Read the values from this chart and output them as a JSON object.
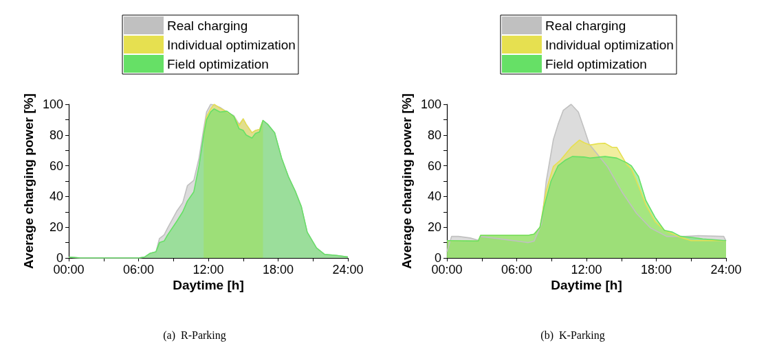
{
  "chart_data": [
    {
      "type": "area",
      "xlabel": "Daytime [h]",
      "ylabel": "Average charging power [%]",
      "annotations": [
        "(a)  R-Parking"
      ],
      "xlim": [
        0,
        24
      ],
      "xticks": [
        {
          "value": 0,
          "label": "00:00"
        },
        {
          "value": 3,
          "label": null
        },
        {
          "value": 6,
          "label": "06:00"
        },
        {
          "value": 9,
          "label": null
        },
        {
          "value": 12,
          "label": "12:00"
        },
        {
          "value": 15,
          "label": null
        },
        {
          "value": 18,
          "label": "18:00"
        },
        {
          "value": 21,
          "label": null
        },
        {
          "value": 24,
          "label": "24:00"
        }
      ],
      "ylim": [
        0,
        100
      ],
      "yticks": [
        0,
        {
          "value": 10,
          "label": null
        },
        20,
        {
          "value": 30,
          "label": null
        },
        40,
        {
          "value": 50,
          "label": null
        },
        60,
        {
          "value": 70,
          "label": null
        },
        80,
        {
          "value": 90,
          "label": null
        },
        100
      ],
      "legend": "top",
      "marker": "none",
      "grid": false,
      "series": [
        {
          "name": "Real charging",
          "color": "#c0c0c0",
          "x": [
            0,
            0.5,
            1,
            6,
            6.5,
            7,
            7.5,
            7.8,
            8.2,
            8.5,
            9.3,
            9.8,
            10.2,
            10.75,
            11.2,
            11.6,
            11.85,
            12.2,
            12.5,
            13,
            13.6,
            14.2,
            14.65,
            15,
            15.25,
            15.75,
            16.05,
            16.4,
            16.7,
            17.1,
            17.7,
            18.3,
            18.9,
            19.5,
            20,
            20.5,
            21.3,
            22,
            23,
            24
          ],
          "values": [
            0.5,
            0.3,
            0,
            0,
            0.5,
            3,
            4,
            12.7,
            15,
            19.5,
            30.6,
            36,
            47,
            50.5,
            65,
            84,
            95,
            100,
            99.5,
            98,
            95,
            92.5,
            87,
            90.5,
            87,
            81.5,
            83,
            83.6,
            89.5,
            87,
            81.5,
            65,
            52.6,
            43,
            33.3,
            16.8,
            6.5,
            2.3,
            1.7,
            0.6
          ]
        },
        {
          "name": "Individual optimization",
          "color": "#e6e050",
          "x": [
            11.6,
            11.85,
            12.2,
            12.5,
            13,
            13.6,
            14.2,
            14.65,
            15,
            15.25,
            15.75,
            16.05,
            16.4,
            16.7
          ],
          "values": [
            80,
            92,
            97,
            100,
            97.5,
            95,
            92,
            86,
            90.5,
            87,
            81.5,
            83,
            83.6,
            89.5
          ]
        },
        {
          "name": "Field optimization",
          "color": "#66e066",
          "x": [
            0,
            0.5,
            1,
            6,
            6.5,
            7,
            7.5,
            7.8,
            8.2,
            8.5,
            9.3,
            9.8,
            10.2,
            10.75,
            11.2,
            11.6,
            11.85,
            12.2,
            12.5,
            13,
            13.6,
            14.2,
            14.65,
            15,
            15.25,
            15.75,
            16.05,
            16.4,
            16.7,
            17.1,
            17.7,
            18.3,
            18.9,
            19.5,
            20,
            20.5,
            21.3,
            22,
            23,
            24
          ],
          "values": [
            0.5,
            0.3,
            0,
            0,
            0.5,
            3,
            4,
            10,
            11,
            15,
            24,
            30,
            37,
            43,
            60,
            80,
            90,
            95,
            97,
            95,
            95.5,
            92,
            84,
            83,
            80,
            78,
            81,
            82,
            89.5,
            87,
            81.5,
            65,
            52.6,
            43,
            33.3,
            16.8,
            6.5,
            2.3,
            1.7,
            0.6
          ]
        }
      ]
    },
    {
      "type": "area",
      "xlabel": "Daytime [h]",
      "ylabel": "Average charging power [%]",
      "annotations": [
        "(b)  K-Parking"
      ],
      "xlim": [
        0,
        24
      ],
      "xticks": [
        {
          "value": 0,
          "label": "00:00"
        },
        {
          "value": 3,
          "label": null
        },
        {
          "value": 6,
          "label": "06:00"
        },
        {
          "value": 9,
          "label": null
        },
        {
          "value": 12,
          "label": "12:00"
        },
        {
          "value": 15,
          "label": null
        },
        {
          "value": 18,
          "label": "18:00"
        },
        {
          "value": 21,
          "label": null
        },
        {
          "value": 24,
          "label": "24:00"
        }
      ],
      "ylim": [
        0,
        100
      ],
      "yticks": [
        0,
        {
          "value": 10,
          "label": null
        },
        20,
        {
          "value": 30,
          "label": null
        },
        40,
        {
          "value": 50,
          "label": null
        },
        60,
        {
          "value": 70,
          "label": null
        },
        80,
        {
          "value": 90,
          "label": null
        },
        100
      ],
      "legend": "top",
      "marker": "none",
      "grid": false,
      "series": [
        {
          "name": "Real charging",
          "color": "#c0c0c0",
          "x": [
            0,
            0.4,
            1,
            2,
            2.7,
            2.9,
            5,
            7,
            7.5,
            8.13,
            8.54,
            9.15,
            9.56,
            10,
            10.68,
            11.3,
            11.8,
            12.24,
            13.8,
            15.05,
            16.3,
            17.5,
            18.9,
            20.5,
            21.6,
            23.8,
            24
          ],
          "values": [
            4,
            14,
            14,
            13,
            11.5,
            14,
            12,
            10,
            11,
            22,
            50,
            77,
            87,
            96,
            100,
            95,
            84,
            74,
            59.5,
            43,
            29,
            19.5,
            14,
            14,
            14.5,
            14,
            11
          ]
        },
        {
          "name": "Individual optimization",
          "color": "#e6e050",
          "x": [
            0,
            2.7,
            2.9,
            7,
            7.5,
            8,
            8.54,
            9.15,
            9.76,
            10.68,
            11.4,
            11.8,
            12.3,
            13,
            13.6,
            14.2,
            14.6,
            15.45,
            15.86,
            16.47,
            17.1,
            17.9,
            18.7,
            19.9,
            21,
            24
          ],
          "values": [
            11.3,
            11,
            14.7,
            14.7,
            15.5,
            20,
            44,
            59.5,
            63.6,
            72,
            76.7,
            75,
            73.5,
            74.4,
            74.6,
            72,
            72,
            61,
            58,
            47,
            34.7,
            23.7,
            18,
            14,
            11.3,
            11.3
          ]
        },
        {
          "name": "Field optimization",
          "color": "#66e066",
          "x": [
            0,
            2.7,
            2.9,
            7,
            7.5,
            8,
            8.34,
            8.95,
            9.56,
            10.17,
            10.78,
            11.8,
            12.3,
            13.6,
            14.6,
            15.45,
            15.86,
            16.47,
            17.1,
            17.9,
            18.7,
            19.4,
            20.1,
            21,
            22,
            24
          ],
          "values": [
            11.3,
            11,
            14.7,
            14.7,
            15.5,
            20,
            33,
            50,
            60,
            63.6,
            66,
            65.7,
            65,
            66,
            65,
            62,
            60,
            53,
            37.5,
            26.4,
            18,
            16.8,
            14,
            13.4,
            12.4,
            11.3
          ]
        }
      ]
    }
  ]
}
